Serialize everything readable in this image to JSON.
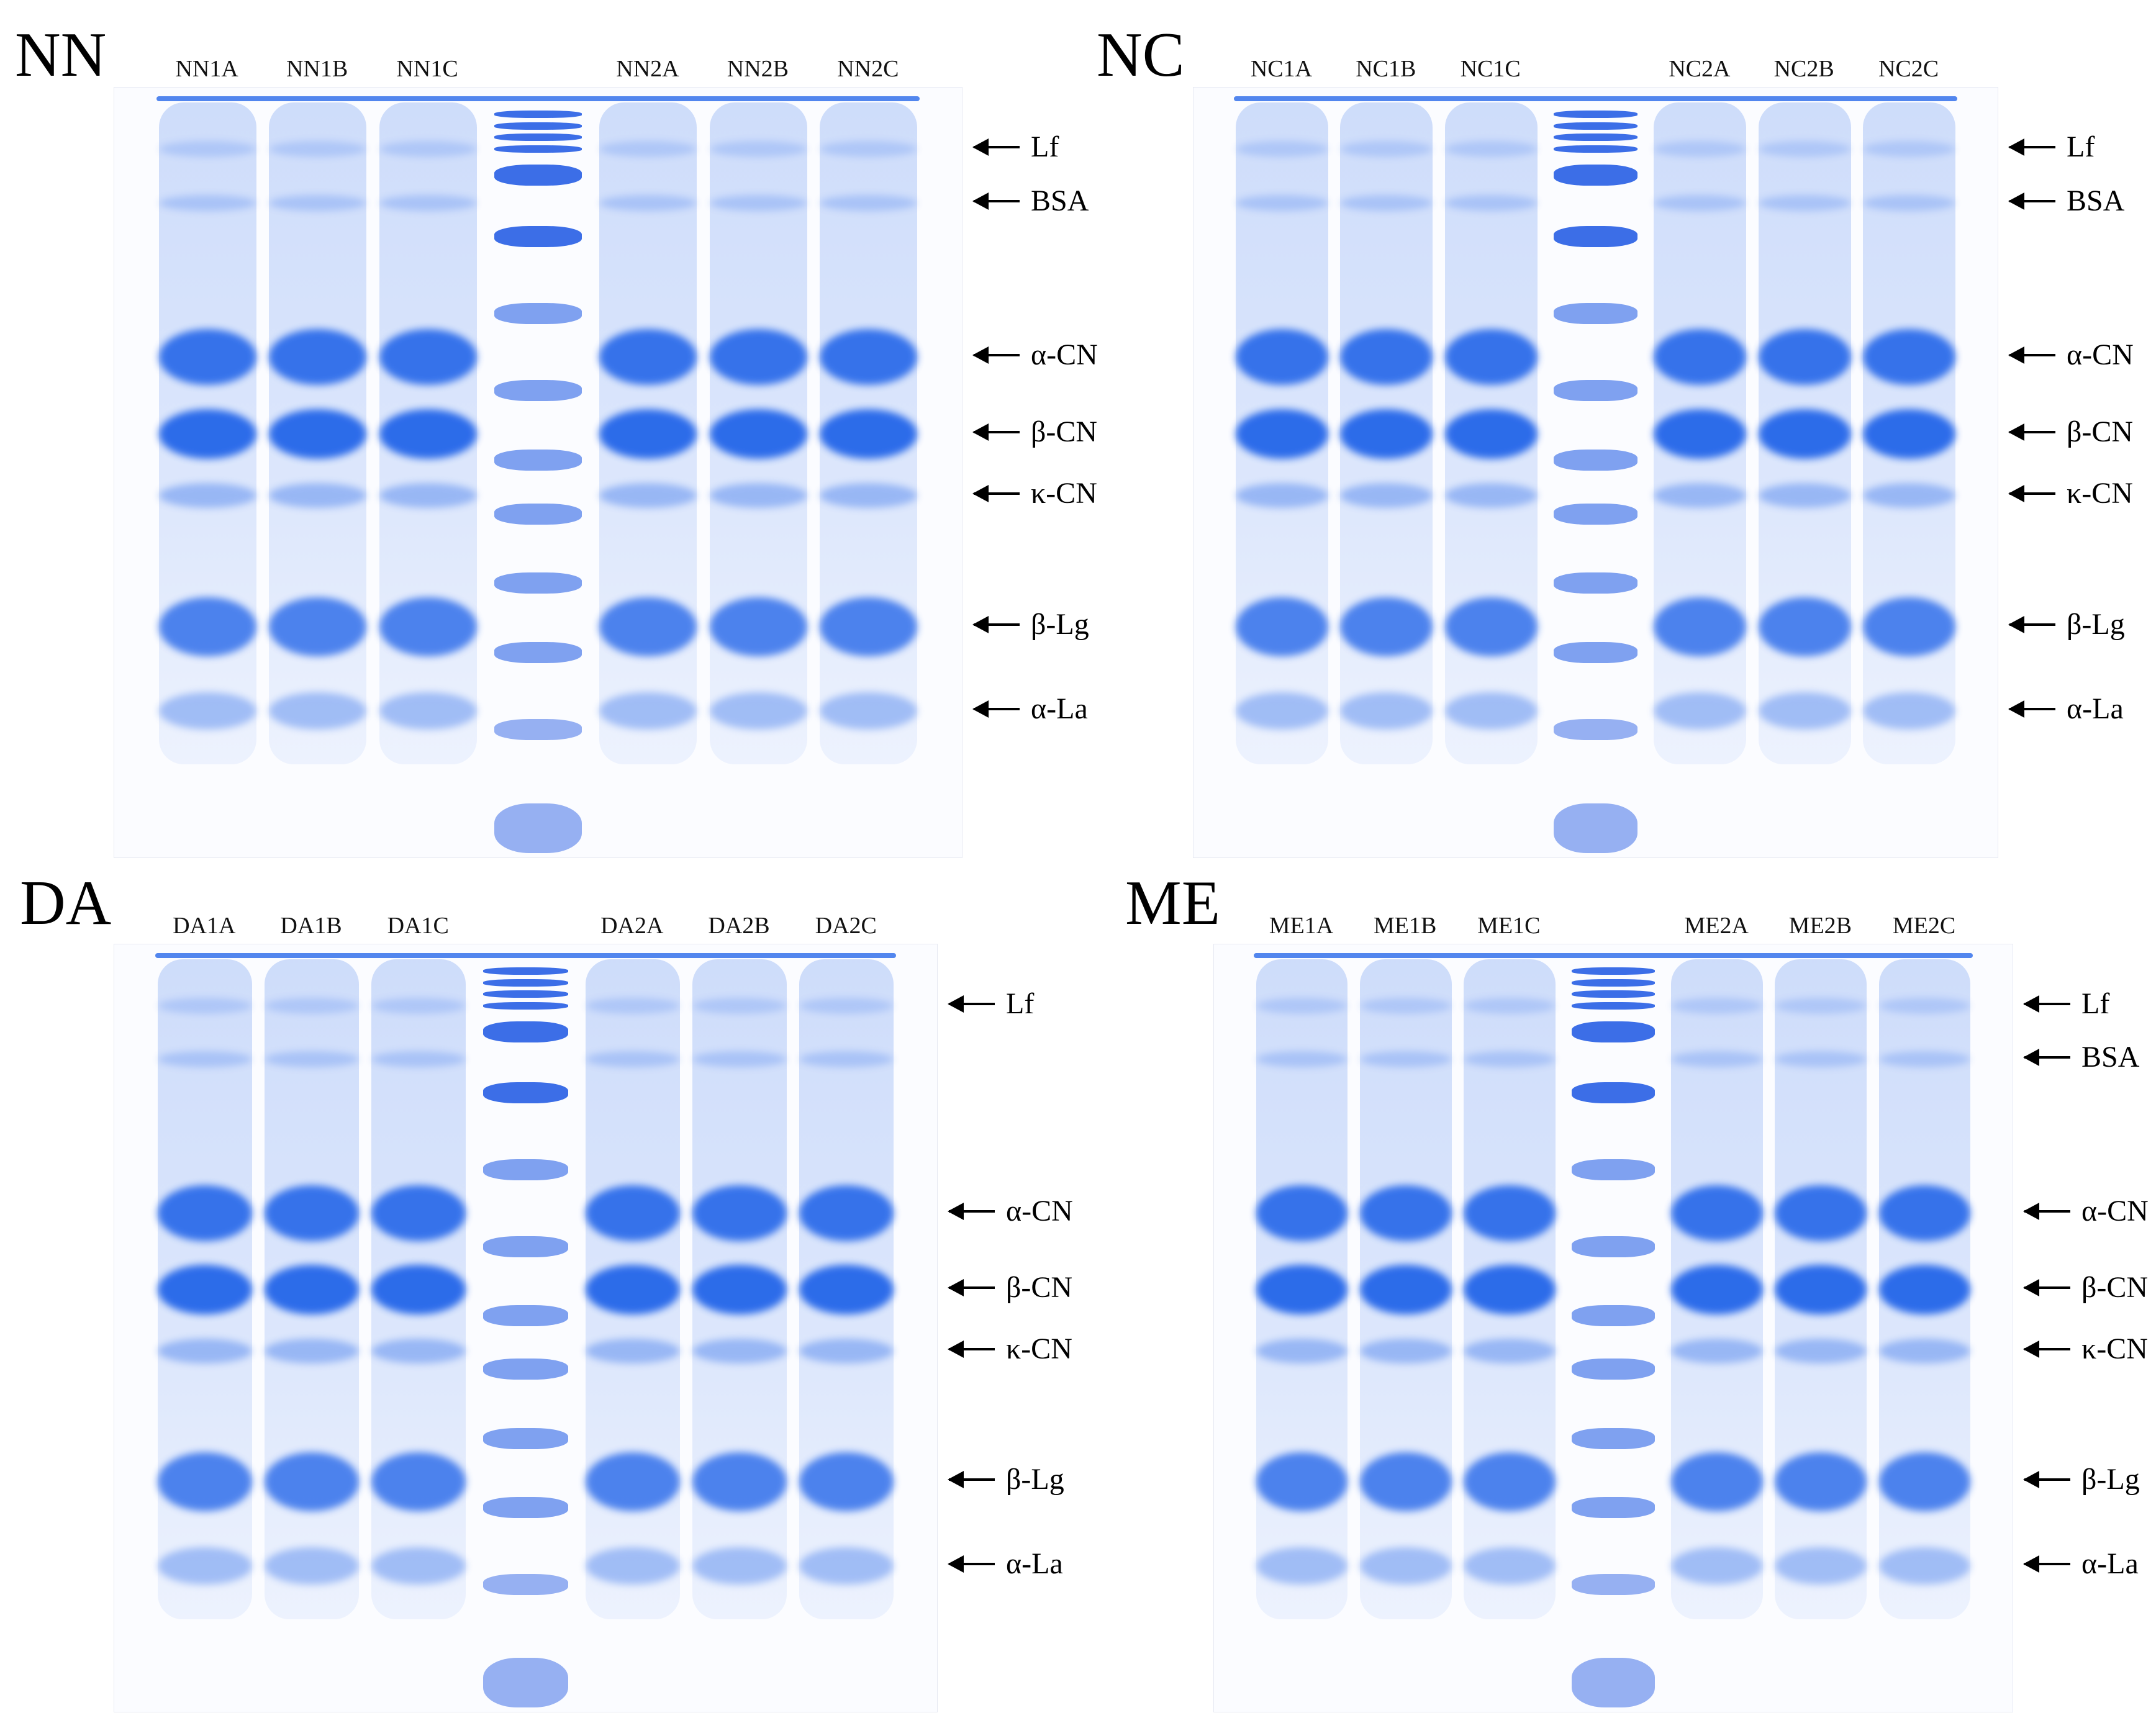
{
  "panels": [
    {
      "title": "NN",
      "lanes": [
        "NN1A",
        "NN1B",
        "NN1C",
        "NN2A",
        "NN2B",
        "NN2C"
      ],
      "markers": [
        "Lf",
        "BSA",
        "α-CN",
        "β-CN",
        "κ-CN",
        "β-Lg",
        "α-La"
      ]
    },
    {
      "title": "NC",
      "lanes": [
        "NC1A",
        "NC1B",
        "NC1C",
        "NC2A",
        "NC2B",
        "NC2C"
      ],
      "markers": [
        "Lf",
        "BSA",
        "α-CN",
        "β-CN",
        "κ-CN",
        "β-Lg",
        "α-La"
      ]
    },
    {
      "title": "DA",
      "lanes": [
        "DA1A",
        "DA1B",
        "DA1C",
        "DA2A",
        "DA2B",
        "DA2C"
      ],
      "markers": [
        "Lf",
        "α-CN",
        "β-CN",
        "κ-CN",
        "β-Lg",
        "α-La"
      ]
    },
    {
      "title": "ME",
      "lanes": [
        "ME1A",
        "ME1B",
        "ME1C",
        "ME2A",
        "ME2B",
        "ME2C"
      ],
      "markers": [
        "Lf",
        "BSA",
        "α-CN",
        "β-CN",
        "κ-CN",
        "β-Lg",
        "α-La"
      ]
    }
  ],
  "colors": {
    "stain": "#1a5fe8",
    "gel_bg": "#fbfcff",
    "text": "#000000"
  }
}
